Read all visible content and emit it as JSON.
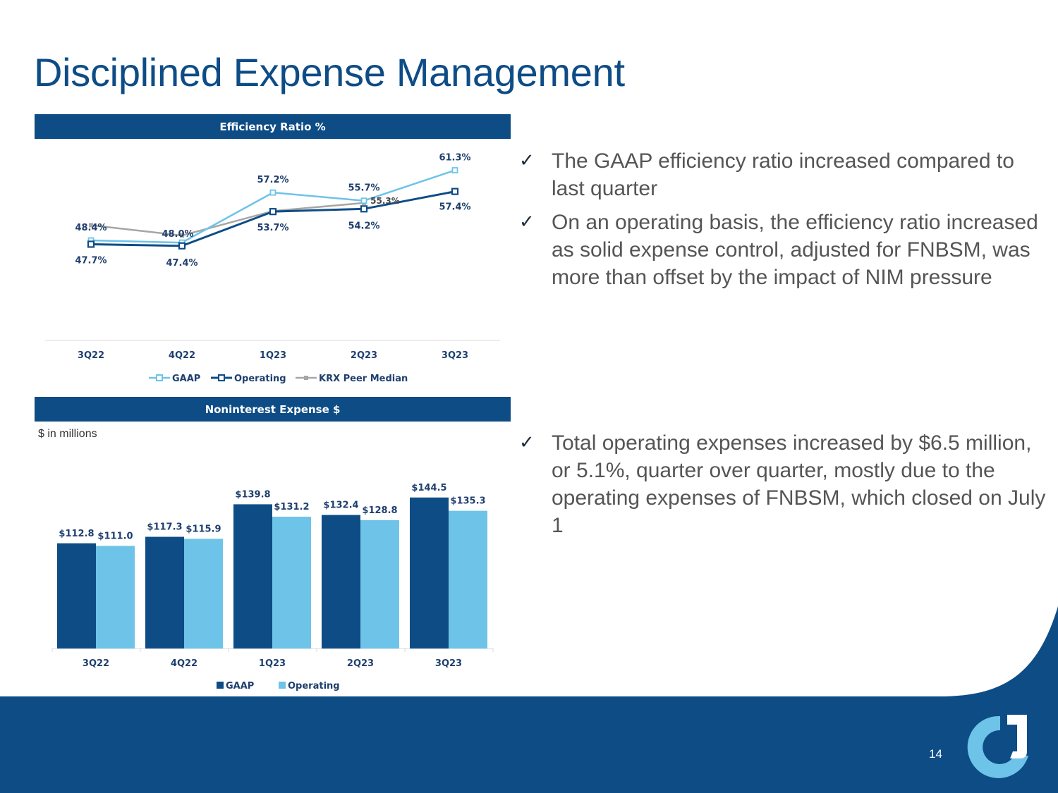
{
  "title": "Disciplined Expense Management",
  "page_number": "14",
  "colors": {
    "navy": "#0e4c86",
    "light_blue": "#6ec3e8",
    "gray": "#a6a6a6",
    "footer": "#0e4c86",
    "logo_light": "#6ec3e8",
    "logo_white": "#ffffff"
  },
  "icons": {
    "check": "check-icon",
    "logo": "company-logo"
  },
  "efficiency_header": "Efficiency Ratio %",
  "expense_header": "Noninterest Expense $",
  "expense_units": "$ in millions",
  "bullets": {
    "b1": "The GAAP efficiency ratio increased compared to last quarter",
    "b2": "On an operating basis, the efficiency ratio increased as solid expense control, adjusted for FNBSM, was more than offset by the impact of NIM pressure",
    "b3": "Total operating expenses increased by $6.5 million, or 5.1%, quarter over quarter, mostly due to the operating expenses of FNBSM, which closed on July 1"
  },
  "chart_data": [
    {
      "type": "line",
      "title": "Efficiency Ratio %",
      "categories": [
        "3Q22",
        "4Q22",
        "1Q23",
        "2Q23",
        "3Q23"
      ],
      "series": [
        {
          "name": "GAAP",
          "values": [
            48.4,
            48.0,
            57.2,
            55.7,
            61.3
          ],
          "labels": [
            "48.4%",
            "48.0%",
            "57.2%",
            "55.7%",
            "61.3%"
          ]
        },
        {
          "name": "Operating",
          "values": [
            47.7,
            47.4,
            53.7,
            54.2,
            57.4
          ],
          "labels": [
            "47.7%",
            "47.4%",
            "53.7%",
            "54.2%",
            "57.4%"
          ]
        },
        {
          "name": "KRX Peer Median",
          "values": [
            51.2,
            49.3,
            53.8,
            55.3,
            null
          ],
          "labels": [
            null,
            null,
            null,
            "55.3%",
            null
          ]
        }
      ],
      "ylim": [
        30,
        65
      ],
      "legend": "bottom"
    },
    {
      "type": "bar",
      "title": "Noninterest Expense $",
      "categories": [
        "3Q22",
        "4Q22",
        "1Q23",
        "2Q23",
        "3Q23"
      ],
      "series": [
        {
          "name": "GAAP",
          "values": [
            112.8,
            117.3,
            139.8,
            132.4,
            144.5
          ],
          "labels": [
            "$112.8",
            "$117.3",
            "$139.8",
            "$132.4",
            "$144.5"
          ]
        },
        {
          "name": "Operating",
          "values": [
            111.0,
            115.9,
            131.2,
            128.8,
            135.3
          ],
          "labels": [
            "$111.0",
            "$115.9",
            "$131.2",
            "$128.8",
            "$135.3"
          ]
        }
      ],
      "ylim": [
        0,
        160
      ],
      "legend": "bottom"
    }
  ]
}
